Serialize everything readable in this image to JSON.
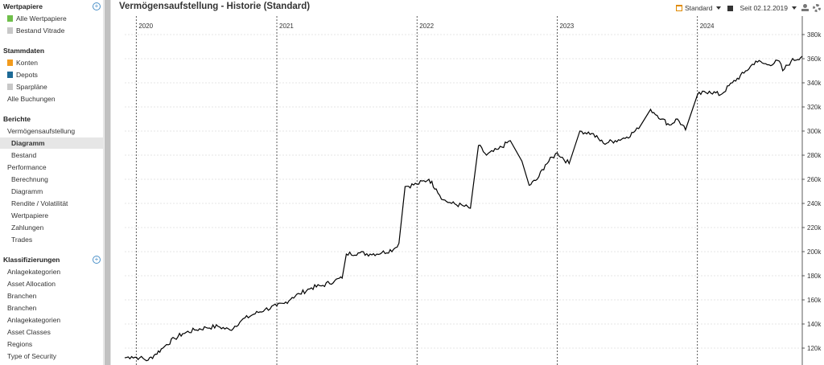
{
  "sidebar": {
    "sections": [
      {
        "header": "Wertpapiere",
        "has_add": true,
        "items": [
          {
            "label": "Alle Wertpapiere",
            "icon": "green-sheet-icon",
            "color": "#6fbf4a"
          },
          {
            "label": "Bestand Vitrade",
            "icon": "grey-sheet-icon",
            "color": "#c8c8c8"
          }
        ]
      },
      {
        "header": "Stammdaten",
        "has_add": false,
        "items": [
          {
            "label": "Konten",
            "icon": "account-icon",
            "color": "#f29b1d"
          },
          {
            "label": "Depots",
            "icon": "depot-icon",
            "color": "#1d6a96"
          },
          {
            "label": "Sparpläne",
            "icon": "plan-icon",
            "color": "#c8c8c8"
          },
          {
            "label": "Alle Buchungen",
            "icon": "",
            "color": ""
          }
        ]
      },
      {
        "header": "Berichte",
        "has_add": false,
        "items": [
          {
            "label": "Vermögensaufstellung",
            "indent": 0
          },
          {
            "label": "Diagramm",
            "indent": 1,
            "active": true
          },
          {
            "label": "Bestand",
            "indent": 1
          },
          {
            "label": "Performance",
            "indent": 0
          },
          {
            "label": "Berechnung",
            "indent": 1
          },
          {
            "label": "Diagramm",
            "indent": 1
          },
          {
            "label": "Rendite / Volatilität",
            "indent": 1
          },
          {
            "label": "Wertpapiere",
            "indent": 1
          },
          {
            "label": "Zahlungen",
            "indent": 1
          },
          {
            "label": "Trades",
            "indent": 1
          }
        ]
      },
      {
        "header": "Klassifizierungen",
        "has_add": true,
        "items": [
          {
            "label": "Anlagekategorien"
          },
          {
            "label": "Asset Allocation"
          },
          {
            "label": "Branchen"
          },
          {
            "label": "Branchen"
          },
          {
            "label": "Anlagekategorien"
          },
          {
            "label": "Asset Classes"
          },
          {
            "label": "Regions"
          },
          {
            "label": "Type of Security"
          }
        ]
      }
    ]
  },
  "main": {
    "title": "Vermögensaufstellung - Historie (Standard)",
    "toolbar": {
      "view_label": "Standard",
      "period_label": "Seit 02.12.2019"
    }
  },
  "chart_data": {
    "type": "line",
    "xlabel": "",
    "ylabel": "",
    "x_range": [
      "2019-12-02",
      "2024-09-30"
    ],
    "year_markers": [
      "2020",
      "2021",
      "2022",
      "2023",
      "2024"
    ],
    "y_ticks": [
      "120k",
      "140k",
      "160k",
      "180k",
      "200k",
      "220k",
      "240k",
      "260k",
      "280k",
      "300k",
      "320k",
      "340k",
      "360k",
      "380k"
    ],
    "ylim": [
      110000,
      390000
    ],
    "grid": true,
    "line_color": "#000000",
    "series": [
      {
        "x": [
          "2019-12-02",
          "2019-12-20",
          "2020-01-10",
          "2020-02-01",
          "2020-02-20",
          "2020-03-10",
          "2020-03-20",
          "2020-04-10",
          "2020-05-01",
          "2020-06-01",
          "2020-07-01",
          "2020-08-01",
          "2020-09-01",
          "2020-10-01",
          "2020-11-01",
          "2020-12-01",
          "2021-01-01",
          "2021-01-20",
          "2021-02-10",
          "2021-03-01",
          "2021-04-01",
          "2021-05-01",
          "2021-06-01",
          "2021-06-20",
          "2021-07-01",
          "2021-08-01",
          "2021-09-01",
          "2021-10-01",
          "2021-11-01",
          "2021-11-15",
          "2021-12-01",
          "2022-01-01",
          "2022-02-01",
          "2022-02-20",
          "2022-03-10",
          "2022-04-01",
          "2022-05-01",
          "2022-05-20",
          "2022-06-10",
          "2022-07-01",
          "2022-08-01",
          "2022-09-01",
          "2022-10-01",
          "2022-10-20",
          "2022-11-10",
          "2022-12-01",
          "2023-01-01",
          "2023-02-01",
          "2023-03-01",
          "2023-04-01",
          "2023-05-01",
          "2023-06-01",
          "2023-07-01",
          "2023-08-01",
          "2023-09-01",
          "2023-10-01",
          "2023-10-20",
          "2023-11-10",
          "2023-12-01",
          "2024-01-01",
          "2024-02-01",
          "2024-03-01",
          "2024-04-01",
          "2024-05-01",
          "2024-06-01",
          "2024-07-01",
          "2024-08-01",
          "2024-08-10",
          "2024-09-01",
          "2024-09-30"
        ],
        "values": [
          112000,
          113000,
          112000,
          110000,
          115000,
          120000,
          123000,
          128000,
          132000,
          135000,
          137000,
          138000,
          135000,
          143000,
          148000,
          152000,
          155000,
          157000,
          162000,
          165000,
          170000,
          172000,
          176000,
          178000,
          198000,
          199000,
          198000,
          199000,
          202000,
          207000,
          254000,
          256000,
          260000,
          252000,
          243000,
          240000,
          238000,
          236000,
          288000,
          280000,
          285000,
          292000,
          275000,
          255000,
          260000,
          272000,
          282000,
          273000,
          300000,
          298000,
          290000,
          292000,
          295000,
          302000,
          318000,
          310000,
          305000,
          310000,
          301000,
          330000,
          333000,
          330000,
          340000,
          348000,
          358000,
          355000,
          358000,
          350000,
          358000,
          362000
        ]
      }
    ]
  }
}
